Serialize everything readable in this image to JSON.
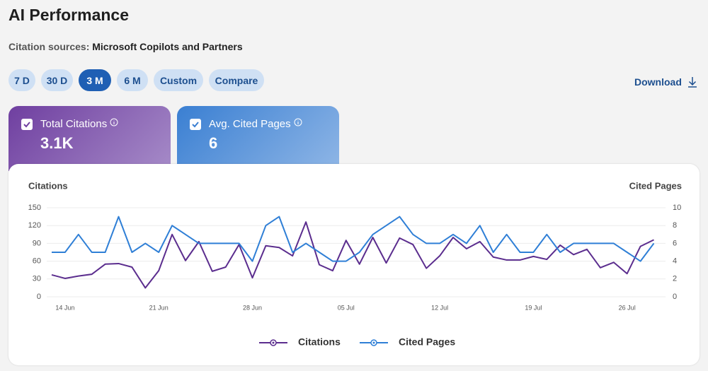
{
  "header": {
    "title": "AI Performance",
    "citation_label": "Citation sources:",
    "citation_value": "Microsoft Copilots and Partners"
  },
  "range_buttons": [
    "7 D",
    "30 D",
    "3 M",
    "6 M",
    "Custom",
    "Compare"
  ],
  "active_button": 2,
  "download": "Download",
  "cards": [
    {
      "label": "Total Citations",
      "value": "3.1K"
    },
    {
      "label": "Avg. Cited Pages",
      "value": "6"
    }
  ],
  "chart_data": {
    "type": "line",
    "y_axis_title": "Citations",
    "y2_axis_title": "Cited Pages",
    "categories": [
      null,
      "14 Jun",
      null,
      null,
      null,
      null,
      null,
      null,
      "21 Jun",
      null,
      null,
      null,
      null,
      null,
      null,
      "28 Jun",
      null,
      null,
      null,
      null,
      null,
      null,
      "05 Jul",
      null,
      null,
      null,
      null,
      null,
      null,
      "12 Jul",
      null,
      null,
      null,
      null,
      null,
      null,
      "19 Jul",
      null,
      null,
      null,
      null,
      null,
      null,
      "26 Jul",
      null,
      null
    ],
    "ylim": [
      0,
      150
    ],
    "yticks": [
      0,
      30,
      60,
      90,
      120,
      150
    ],
    "y2lim": [
      0,
      10
    ],
    "y2ticks": [
      0,
      2,
      4,
      6,
      8,
      10
    ],
    "grid": true,
    "legend": "bottom",
    "series": [
      {
        "name": "Citations",
        "color": "#5b2d8e",
        "values": [
          37,
          31,
          35,
          38,
          55,
          56,
          50,
          15,
          44,
          105,
          61,
          93,
          43,
          50,
          88,
          32,
          86,
          83,
          69,
          126,
          54,
          44,
          95,
          55,
          100,
          57,
          99,
          88,
          48,
          69,
          100,
          81,
          93,
          67,
          62,
          62,
          68,
          63,
          87,
          71,
          80,
          49,
          58,
          39,
          85,
          96
        ]
      },
      {
        "name": "Cited Pages",
        "color": "#2f7fd6",
        "axis": "y2",
        "values": [
          5,
          5,
          7,
          5,
          5,
          9,
          5,
          6,
          5,
          8,
          7,
          6,
          6,
          6,
          6,
          4,
          8,
          9,
          5,
          6,
          5,
          4,
          4,
          5,
          7,
          8,
          9,
          7,
          6,
          6,
          7,
          6,
          8,
          5,
          7,
          5,
          5,
          7,
          5,
          6,
          6,
          6,
          6,
          5,
          4,
          6
        ]
      }
    ]
  }
}
